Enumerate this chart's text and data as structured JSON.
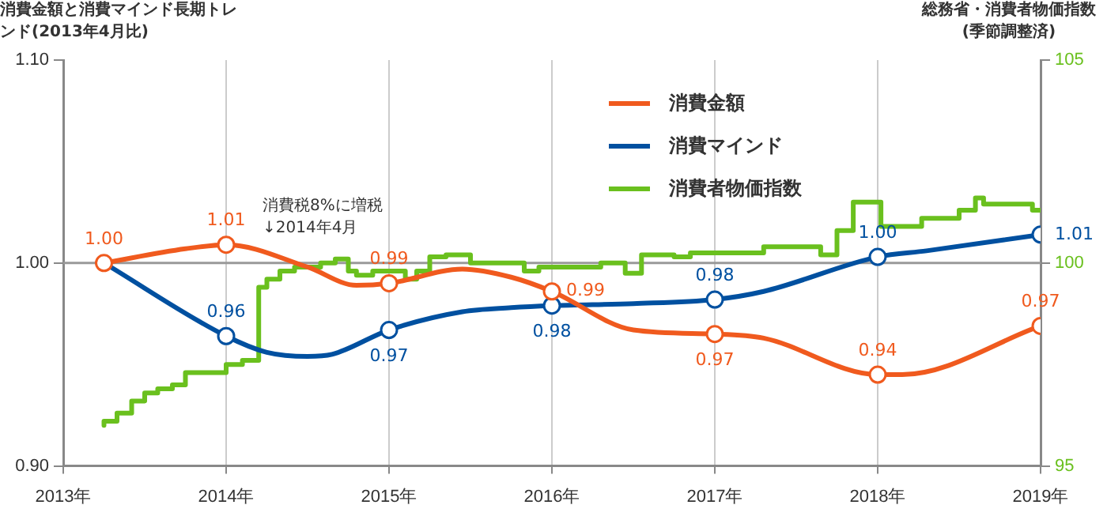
{
  "chart_data": {
    "type": "line",
    "ylabel": "消費金額と消費マインド長期トレンド(2013年4月比)",
    "y2label": "総務省・消費者物価指数(季節調整済)",
    "xlim": [
      2013,
      2019
    ],
    "xticks": [
      {
        "value": 2013,
        "label": "2013年"
      },
      {
        "value": 2014,
        "label": "2014年"
      },
      {
        "value": 2015,
        "label": "2015年"
      },
      {
        "value": 2016,
        "label": "2016年"
      },
      {
        "value": 2017,
        "label": "2017年"
      },
      {
        "value": 2018,
        "label": "2018年"
      },
      {
        "value": 2019,
        "label": "2019年"
      }
    ],
    "ylim": [
      0.9,
      1.1
    ],
    "yticks": [
      {
        "value": 0.9,
        "label": "0.90"
      },
      {
        "value": 1.0,
        "label": "1.00"
      },
      {
        "value": 1.1,
        "label": "1.10"
      }
    ],
    "y2lim": [
      95,
      105
    ],
    "y2ticks": [
      95,
      100,
      105
    ],
    "grid": "x",
    "legend": "top",
    "ref_lines": [
      {
        "axis": "y",
        "value": 1.0,
        "color": "#999999"
      }
    ],
    "annotations": [
      "消費税8%に増税 ↓2014年4月"
    ],
    "series": [
      {
        "name": "消費金額",
        "color": "#f05a1e",
        "x": [
          2013.25,
          2013.75,
          2014,
          2014.5,
          2014.8,
          2015,
          2015.45,
          2015.75,
          2016,
          2016.5,
          2017,
          2017.3,
          2018,
          2018.15,
          2019
        ],
        "values": [
          1.0,
          1.007,
          1.009,
          0.998,
          0.989,
          0.99,
          0.997,
          0.993,
          0.986,
          0.967,
          0.965,
          0.963,
          0.945,
          0.945,
          0.969
        ],
        "value_labels": [
          "1.00",
          null,
          "1.01",
          null,
          null,
          "0.99",
          null,
          null,
          "0.99",
          null,
          "0.97",
          null,
          "0.94",
          null,
          "0.97"
        ]
      },
      {
        "name": "消費マインド",
        "color": "#0050a0",
        "x": [
          2013.25,
          2014,
          2014.25,
          2014.5,
          2014.65,
          2015,
          2015.45,
          2015.75,
          2016,
          2016.5,
          2017,
          2017.3,
          2018,
          2018.3,
          2019
        ],
        "values": [
          1.0,
          0.964,
          0.956,
          0.954,
          0.955,
          0.967,
          0.976,
          0.978,
          0.979,
          0.98,
          0.982,
          0.986,
          1.003,
          1.006,
          1.014
        ],
        "value_labels": [
          null,
          "0.96",
          null,
          null,
          null,
          "0.97",
          null,
          null,
          "0.98",
          null,
          "0.98",
          null,
          "1.00",
          null,
          "1.01"
        ]
      },
      {
        "name": "消費者物価指数",
        "type": "step",
        "axis": "y2",
        "color": "#6ac01e",
        "x": [
          2013.25,
          2013.33,
          2013.42,
          2013.5,
          2013.58,
          2013.67,
          2013.75,
          2013.83,
          2014,
          2014.1,
          2014.2,
          2014.25,
          2014.33,
          2014.42,
          2014.58,
          2014.67,
          2014.75,
          2014.8,
          2014.9,
          2015.1,
          2015.17,
          2015.25,
          2015.35,
          2015.5,
          2015.83,
          2015.92,
          2016.1,
          2016.3,
          2016.45,
          2016.55,
          2016.75,
          2016.85,
          2017.3,
          2017.65,
          2017.75,
          2017.85,
          2018.02,
          2018.27,
          2018.5,
          2018.6,
          2018.65,
          2018.95,
          2019
        ],
        "values": [
          96.0,
          96.1,
          96.3,
          96.6,
          96.8,
          96.9,
          97.0,
          97.3,
          97.3,
          97.5,
          97.6,
          99.4,
          99.6,
          99.8,
          99.9,
          100.0,
          100.1,
          99.8,
          99.7,
          99.8,
          99.6,
          99.8,
          100.15,
          100.2,
          100.0,
          99.8,
          99.9,
          99.9,
          100.0,
          99.75,
          100.2,
          100.15,
          100.25,
          100.4,
          100.2,
          100.8,
          101.5,
          100.9,
          101.1,
          101.3,
          101.6,
          101.45,
          101.3
        ]
      }
    ]
  }
}
